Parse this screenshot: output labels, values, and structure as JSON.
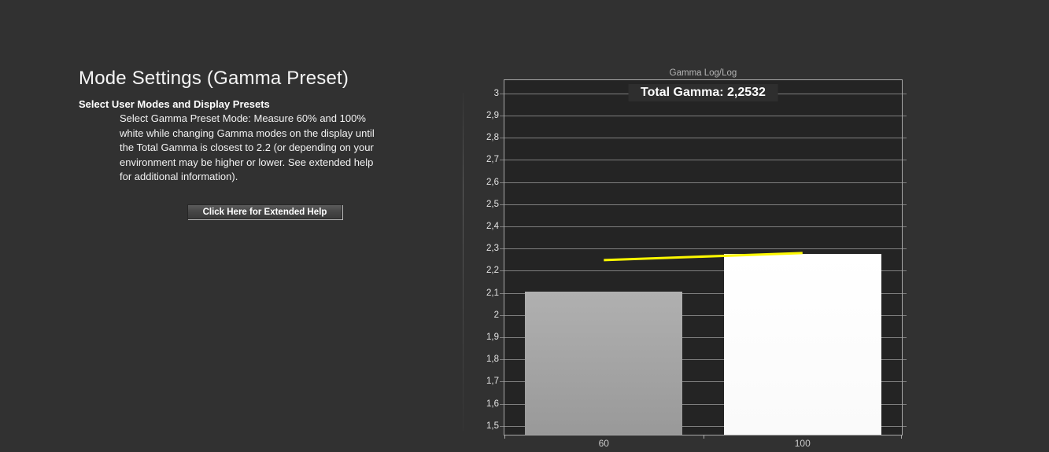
{
  "window": {
    "background": "#313131"
  },
  "panel": {
    "title": "Mode Settings (Gamma Preset)",
    "subtitle": "Select User Modes and Display Presets",
    "description": "Select Gamma Preset Mode: Measure 60% and 100%\nwhite while changing Gamma modes on the display until\nthe Total Gamma is closest to 2.2 (or depending on your\nenvironment may be higher or lower. See extended help\nfor additional information).",
    "help_button_label": "Click Here for Extended Help"
  },
  "chart_data": {
    "type": "bar",
    "title": "Gamma Log/Log",
    "annotation": "Total Gamma: 2,2532",
    "total_gamma_value": "2,2532",
    "categories": [
      "60",
      "100"
    ],
    "series": [
      {
        "name": "measured-gamma-bars",
        "type": "bar",
        "values": [
          2.105,
          2.277
        ]
      },
      {
        "name": "gamma-trend-line",
        "type": "line",
        "values": [
          2.248,
          2.28
        ],
        "color": "#fdf800"
      }
    ],
    "xlabel": "",
    "ylabel": "",
    "ylim": [
      1.46,
      3.06
    ],
    "yticks": [
      {
        "value": 3.0,
        "label": "3"
      },
      {
        "value": 2.9,
        "label": "2,9"
      },
      {
        "value": 2.8,
        "label": "2,8"
      },
      {
        "value": 2.7,
        "label": "2,7"
      },
      {
        "value": 2.6,
        "label": "2,6"
      },
      {
        "value": 2.5,
        "label": "2,5"
      },
      {
        "value": 2.4,
        "label": "2,4"
      },
      {
        "value": 2.3,
        "label": "2,3"
      },
      {
        "value": 2.2,
        "label": "2,2"
      },
      {
        "value": 2.1,
        "label": "2,1"
      },
      {
        "value": 2.0,
        "label": "2"
      },
      {
        "value": 1.9,
        "label": "1,9"
      },
      {
        "value": 1.8,
        "label": "1,8"
      },
      {
        "value": 1.7,
        "label": "1,7"
      },
      {
        "value": 1.6,
        "label": "1,6"
      },
      {
        "value": 1.5,
        "label": "1,5"
      }
    ],
    "grid": true,
    "legend_position": "none",
    "colors": {
      "plot_bg": "#242424",
      "gridline": "#7f7f7f",
      "plot_border": "#a8a8a8",
      "line": "#fdf800"
    },
    "bar_fills": [
      [
        "#b0b0b0",
        "#999999"
      ],
      [
        "#ffffff",
        "#fafafa"
      ]
    ]
  }
}
